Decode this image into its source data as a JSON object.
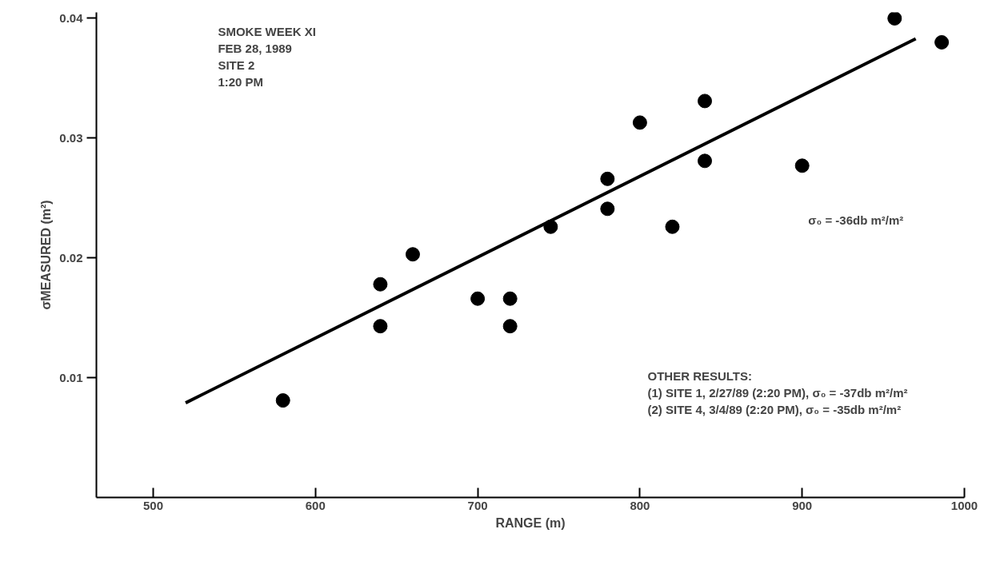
{
  "chart_data": {
    "type": "scatter",
    "xlabel": "RANGE (m)",
    "ylabel": "σMEASURED (m²)",
    "xlim": [
      465,
      1000
    ],
    "ylim": [
      0,
      0.0405
    ],
    "xticks": [
      500,
      600,
      700,
      800,
      900,
      1000
    ],
    "yticks": [
      0.01,
      0.02,
      0.03,
      0.04
    ],
    "grid": false,
    "series": [
      {
        "marker": "circle",
        "color": "#000000",
        "x": [
          580,
          640,
          640,
          660,
          700,
          720,
          720,
          745,
          780,
          780,
          800,
          820,
          840,
          840,
          900,
          957,
          986
        ],
        "values": [
          0.0081,
          0.0178,
          0.0143,
          0.0203,
          0.0166,
          0.0166,
          0.0143,
          0.0226,
          0.0266,
          0.0241,
          0.0313,
          0.0226,
          0.0331,
          0.0281,
          0.0277,
          0.04,
          0.038
        ]
      },
      {
        "type": "line",
        "color": "#000000",
        "line_style": "solid",
        "x": [
          520,
          970
        ],
        "values": [
          0.0079,
          0.0383
        ]
      }
    ],
    "annotations": [
      "SMOKE WEEK XI\nFEB 28, 1989\nSITE 2\n1:20 PM",
      "σ₀ = -36db m²/m²",
      "OTHER RESULTS:\n   (1) SITE 1, 2/27/89 (2:20 PM), σ₀ = -37db m²/m²\n   (2) SITE 4, 3/4/89 (2:20 PM), σ₀ = -35db m²/m²"
    ]
  }
}
